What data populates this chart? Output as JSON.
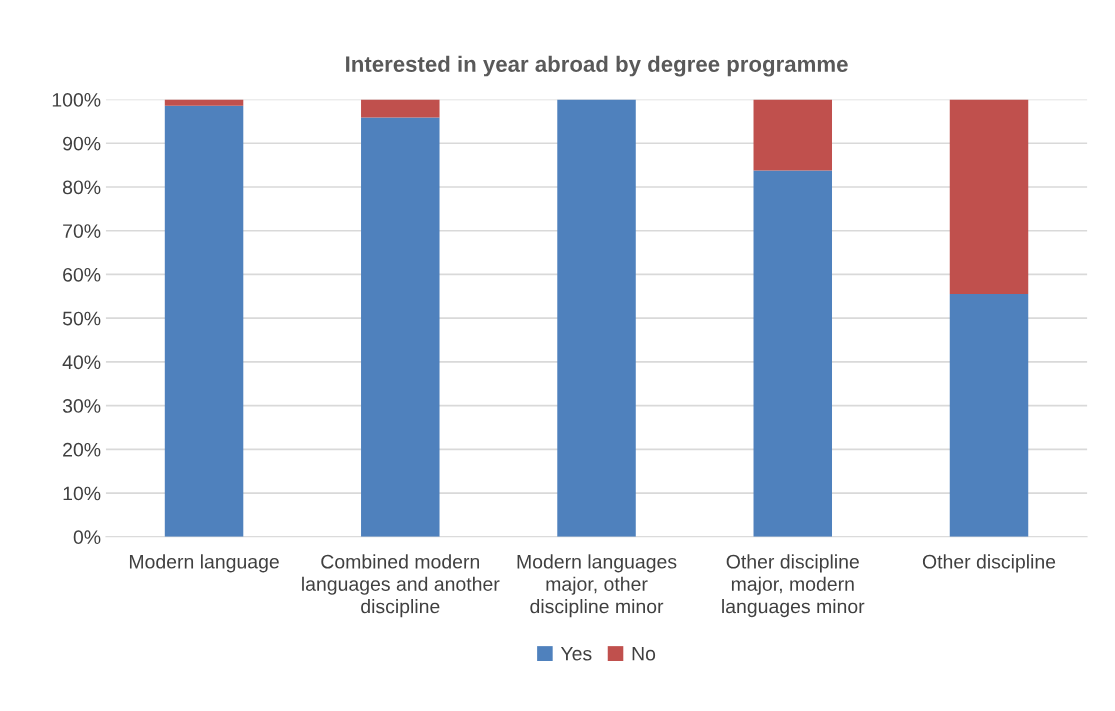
{
  "chart_data": {
    "type": "bar",
    "stacked": true,
    "title": "Interested in year abroad by degree programme",
    "categories": [
      "Modern language",
      "Combined modern languages and another discipline",
      "Modern languages major, other discipline minor",
      "Other discipline major, modern languages minor",
      "Other discipline"
    ],
    "series": [
      {
        "name": "Yes",
        "color": "#4f81bd",
        "values": [
          98.6,
          95.9,
          100,
          83.8,
          55.5
        ]
      },
      {
        "name": "No",
        "color": "#c0504d",
        "values": [
          1.4,
          4.1,
          0,
          16.2,
          44.5
        ]
      }
    ],
    "ylim": [
      0,
      100
    ],
    "yticks": [
      {
        "value": 0,
        "label": "0%"
      },
      {
        "value": 10,
        "label": "10%"
      },
      {
        "value": 20,
        "label": "20%"
      },
      {
        "value": 30,
        "label": "30%"
      },
      {
        "value": 40,
        "label": "40%"
      },
      {
        "value": 50,
        "label": "50%"
      },
      {
        "value": 60,
        "label": "60%"
      },
      {
        "value": 70,
        "label": "70%"
      },
      {
        "value": 80,
        "label": "80%"
      },
      {
        "value": 90,
        "label": "90%"
      },
      {
        "value": 100,
        "label": "100%"
      }
    ],
    "grid": "y",
    "legend": "bottom"
  }
}
